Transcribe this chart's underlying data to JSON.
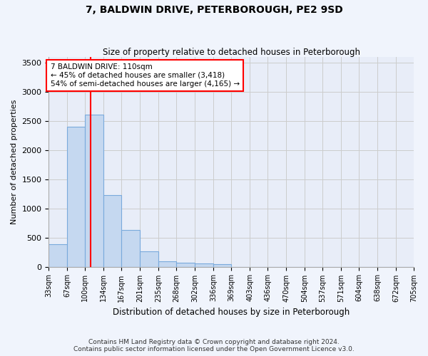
{
  "title": "7, BALDWIN DRIVE, PETERBOROUGH, PE2 9SD",
  "subtitle": "Size of property relative to detached houses in Peterborough",
  "xlabel": "Distribution of detached houses by size in Peterborough",
  "ylabel": "Number of detached properties",
  "footer_line1": "Contains HM Land Registry data © Crown copyright and database right 2024.",
  "footer_line2": "Contains public sector information licensed under the Open Government Licence v3.0.",
  "annotation_line1": "7 BALDWIN DRIVE: 110sqm",
  "annotation_line2": "← 45% of detached houses are smaller (3,418)",
  "annotation_line3": "54% of semi-detached houses are larger (4,165) →",
  "bar_color": "#c5d8f0",
  "bar_edge_color": "#7aaadc",
  "red_line_x": 110,
  "bin_edges": [
    33,
    67,
    100,
    134,
    167,
    201,
    235,
    268,
    302,
    336,
    369,
    403,
    436,
    470,
    504,
    537,
    571,
    604,
    638,
    672,
    705
  ],
  "bar_heights": [
    390,
    2400,
    2600,
    1230,
    630,
    260,
    95,
    65,
    60,
    45,
    0,
    0,
    0,
    0,
    0,
    0,
    0,
    0,
    0,
    0
  ],
  "ylim": [
    0,
    3600
  ],
  "yticks": [
    0,
    500,
    1000,
    1500,
    2000,
    2500,
    3000,
    3500
  ],
  "grid_color": "#cccccc",
  "background_color": "#f0f4fc",
  "plot_bg_color": "#e8edf8"
}
